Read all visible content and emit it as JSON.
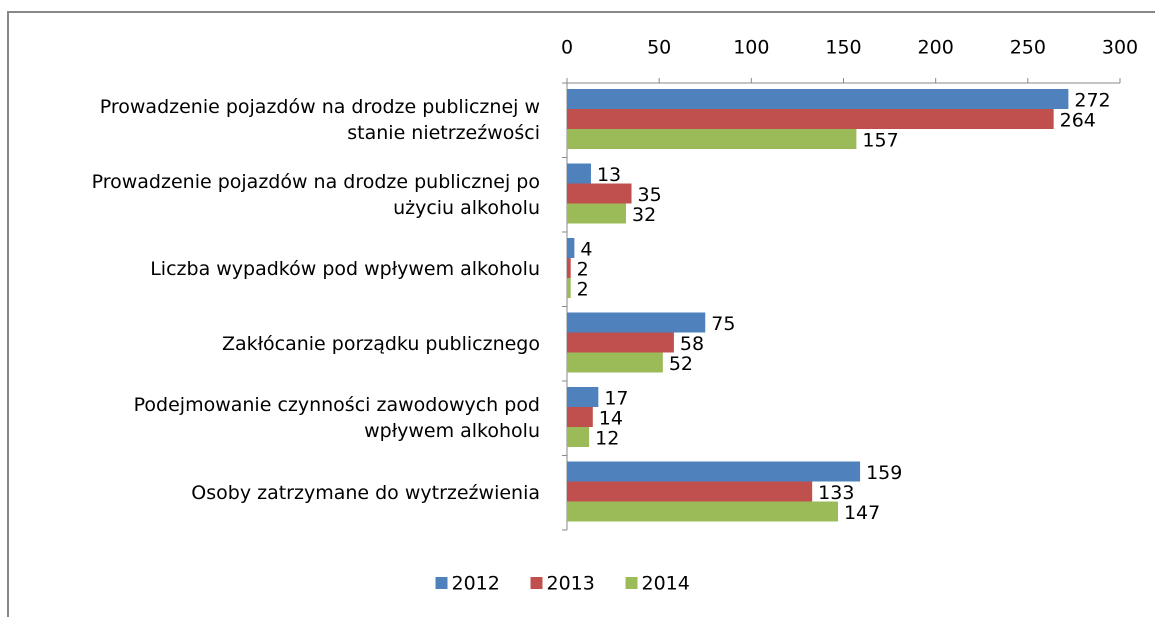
{
  "chart_data": {
    "type": "bar",
    "orientation": "horizontal",
    "categories": [
      "Prowadzenie pojazdów na drodze publicznej w\nstanie nietrzeźwości",
      "Prowadzenie pojazdów na drodze publicznej po\nużyciu alkoholu",
      "Liczba wypadków pod wpływem alkoholu",
      "Zakłócanie porządku publicznego",
      "Podejmowanie czynności zawodowych pod\nwpływem alkoholu",
      "Osoby zatrzymane do wytrzeźwienia"
    ],
    "series": [
      {
        "name": "2012",
        "color": "#4f81bd",
        "values": [
          272,
          13,
          4,
          75,
          17,
          159
        ]
      },
      {
        "name": "2013",
        "color": "#c0504d",
        "values": [
          264,
          35,
          2,
          58,
          14,
          133
        ]
      },
      {
        "name": "2014",
        "color": "#9bbb59",
        "values": [
          157,
          32,
          2,
          52,
          12,
          147
        ]
      }
    ],
    "xlim": [
      0,
      300
    ],
    "xticks": [
      0,
      50,
      100,
      150,
      200,
      250,
      300
    ],
    "grid": false,
    "legend": "bottom"
  }
}
